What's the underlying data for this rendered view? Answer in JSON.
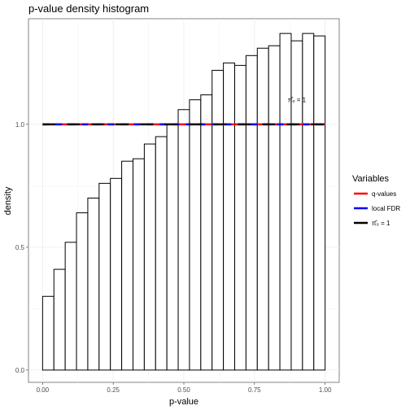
{
  "chart_data": {
    "type": "bar",
    "title": "p-value density histogram",
    "xlabel": "p-value",
    "ylabel": "density",
    "xlim": [
      -0.05,
      1.05
    ],
    "ylim": [
      -0.05,
      1.43
    ],
    "x_ticks": [
      0.0,
      0.25,
      0.5,
      0.75,
      1.0
    ],
    "x_tick_labels": [
      "0.00",
      "0.25",
      "0.50",
      "0.75",
      "1.00"
    ],
    "y_ticks": [
      0.0,
      0.5,
      1.0
    ],
    "y_tick_labels": [
      "0.0",
      "0.5",
      "1.0"
    ],
    "grid": true,
    "bins": {
      "width": 0.04,
      "start": 0.0,
      "values": [
        0.3,
        0.41,
        0.52,
        0.64,
        0.7,
        0.76,
        0.78,
        0.85,
        0.86,
        0.92,
        0.95,
        1.0,
        1.06,
        1.1,
        1.12,
        1.22,
        1.25,
        1.24,
        1.28,
        1.31,
        1.32,
        1.37,
        1.34,
        1.37,
        1.36
      ]
    },
    "lines": [
      {
        "name": "q-values",
        "color": "#ff0000",
        "y": 1.0,
        "x_range": [
          0.0,
          1.0
        ]
      },
      {
        "name": "local FDR",
        "color": "#0000ff",
        "y": 1.0,
        "x_range": [
          0.0,
          1.0
        ]
      },
      {
        "name": "π̂₀ = 1",
        "color": "#000000",
        "y": 1.0,
        "x_range": [
          0.0,
          1.0
        ]
      }
    ],
    "annotation": {
      "text": "π̂₀ = 1",
      "x": 0.9,
      "y": 1.09
    },
    "legend": {
      "title": "Variables",
      "placement": "right",
      "entries": [
        "q-values",
        "local FDR",
        "π̂₀ = 1"
      ]
    }
  }
}
